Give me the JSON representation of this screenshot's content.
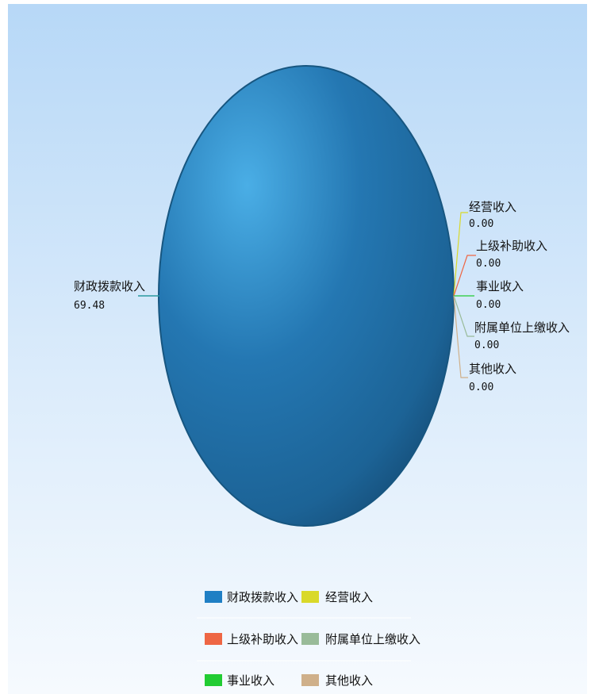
{
  "chart_data": {
    "type": "pie",
    "title": "",
    "slices": [
      {
        "label": "财政拨款收入",
        "value": "69.48",
        "color": "#1f7fc4"
      },
      {
        "label": "经营收入",
        "value": "0.00",
        "color": "#d9d92a"
      },
      {
        "label": "上级补助收入",
        "value": "0.00",
        "color": "#ee6644"
      },
      {
        "label": "事业收入",
        "value": "0.00",
        "color": "#22cc33"
      },
      {
        "label": "附属单位上缴收入",
        "value": "0.00",
        "color": "#99bb99"
      },
      {
        "label": "其他收入",
        "value": "0.00",
        "color": "#cfb08a"
      }
    ],
    "legend": {
      "placement": "bottom",
      "rows": [
        [
          "财政拨款收入",
          "经营收入"
        ],
        [
          "上级补助收入",
          "附属单位上缴收入"
        ],
        [
          "事业收入",
          "其他收入"
        ]
      ]
    }
  }
}
